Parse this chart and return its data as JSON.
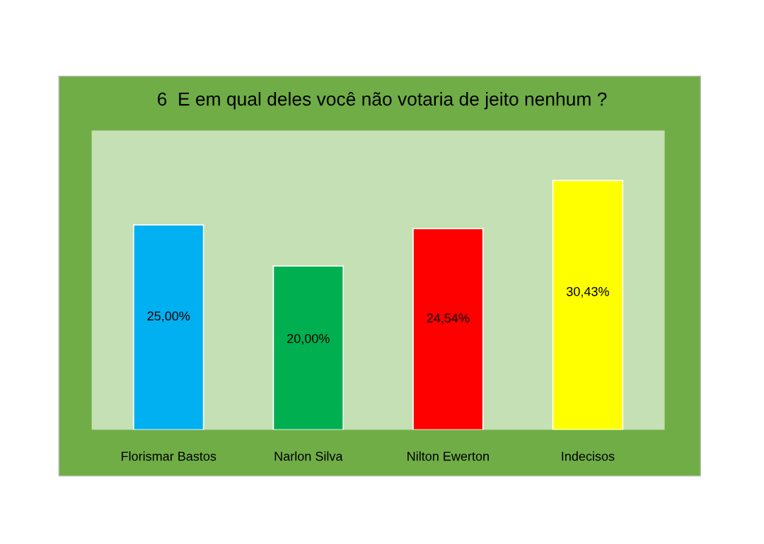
{
  "chart_data": {
    "type": "bar",
    "title": "6  E em qual deles você não votaria de jeito nenhum ?",
    "categories": [
      "Florismar Bastos",
      "Narlon Silva",
      "Nilton Ewerton",
      "Indecisos"
    ],
    "values": [
      25.0,
      20.0,
      24.54,
      30.43
    ],
    "colors": [
      "#00b0f0",
      "#00b050",
      "#ff0000",
      "#ffff00"
    ],
    "value_labels": [
      "25,00%",
      "20,00%",
      "24,54%",
      "30,43%"
    ]
  }
}
